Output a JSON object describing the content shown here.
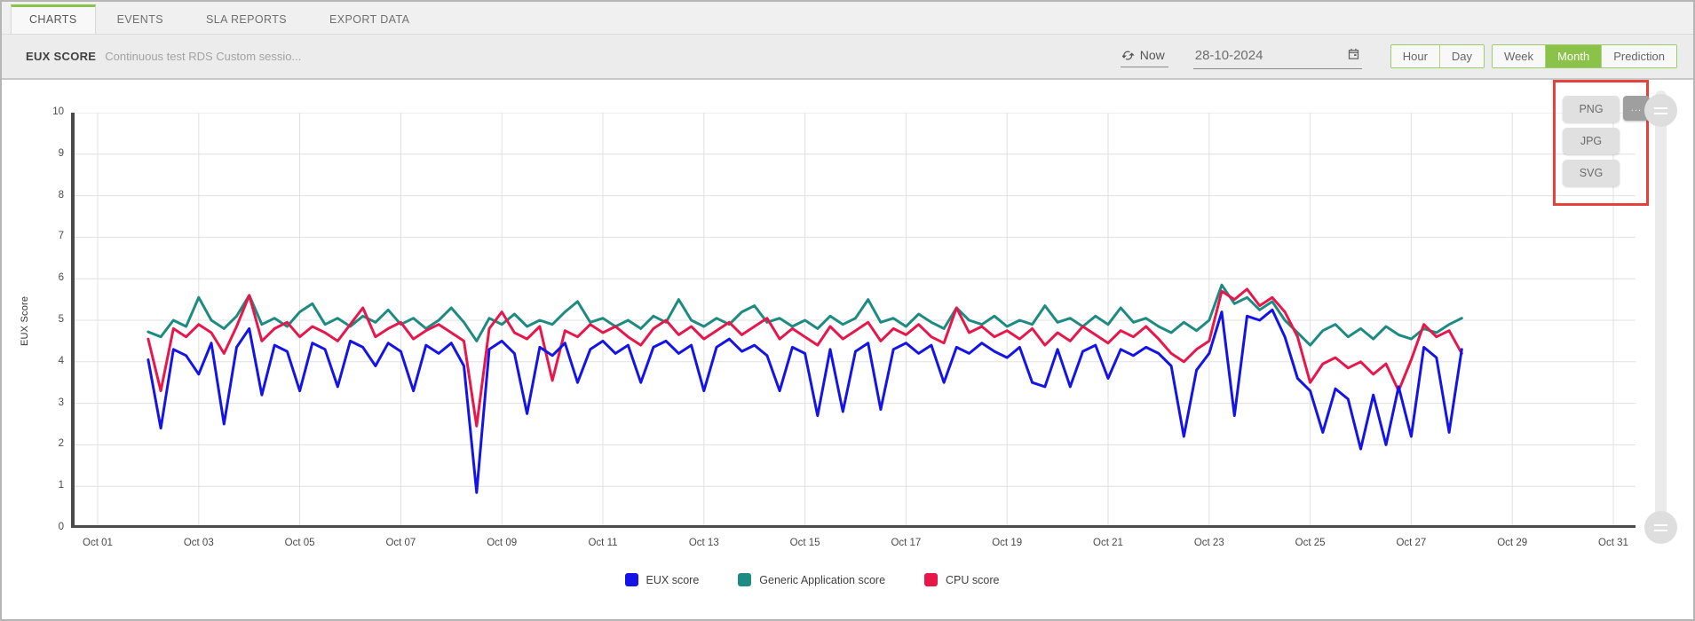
{
  "tabs": {
    "items": [
      {
        "label": "CHARTS",
        "active": true
      },
      {
        "label": "EVENTS",
        "active": false
      },
      {
        "label": "SLA REPORTS",
        "active": false
      },
      {
        "label": "EXPORT DATA",
        "active": false
      }
    ]
  },
  "toolbar": {
    "title": "EUX SCORE",
    "subtitle": "Continuous test RDS Custom sessio...",
    "now_label": "Now",
    "date_value": "28-10-2024",
    "range_groups": [
      [
        {
          "label": "Hour",
          "selected": false
        },
        {
          "label": "Day",
          "selected": false
        }
      ],
      [
        {
          "label": "Week",
          "selected": false
        },
        {
          "label": "Month",
          "selected": true
        },
        {
          "label": "Prediction",
          "selected": false
        }
      ]
    ]
  },
  "export_menu": {
    "more_label": "...",
    "options": [
      "PNG",
      "JPG",
      "SVG"
    ]
  },
  "legend": [
    {
      "label": "EUX score",
      "color": "#1414e8"
    },
    {
      "label": "Generic Application score",
      "color": "#1d8b81"
    },
    {
      "label": "CPU score",
      "color": "#e8174b"
    }
  ],
  "colors": {
    "accent_green": "#8bc34a",
    "annotation_red": "#e8403a",
    "axis": "#4a4a4a",
    "grid": "#e0e0e0"
  },
  "chart_data": {
    "type": "line",
    "title": "EUX SCORE",
    "xlabel": "",
    "ylabel": "EUX Score",
    "ylim": [
      0,
      10
    ],
    "y_ticks": [
      0,
      1,
      2,
      3,
      4,
      5,
      6,
      7,
      8,
      9,
      10
    ],
    "x_tick_labels": [
      "Oct 01",
      "Oct 03",
      "Oct 05",
      "Oct 07",
      "Oct 09",
      "Oct 11",
      "Oct 13",
      "Oct 15",
      "Oct 17",
      "Oct 19",
      "Oct 21",
      "Oct 23",
      "Oct 25",
      "Oct 27",
      "Oct 29",
      "Oct 31"
    ],
    "x_tick_days": [
      1,
      3,
      5,
      7,
      9,
      11,
      13,
      15,
      17,
      19,
      21,
      23,
      25,
      27,
      29,
      31
    ],
    "x_range_days": [
      1,
      31
    ],
    "x_start_day": 2.0,
    "x_step_days": 0.25,
    "grid": true,
    "legend_position": "bottom",
    "series": [
      {
        "name": "Generic Application score",
        "color": "#1d8b81",
        "values": [
          4.72,
          4.6,
          5.0,
          4.85,
          5.55,
          5.0,
          4.8,
          5.1,
          5.6,
          4.9,
          5.05,
          4.85,
          5.2,
          5.4,
          4.9,
          5.05,
          4.85,
          5.1,
          4.95,
          5.25,
          4.9,
          5.05,
          4.8,
          5.0,
          5.3,
          4.95,
          4.5,
          5.05,
          4.9,
          5.15,
          4.85,
          5.0,
          4.9,
          5.2,
          5.45,
          4.95,
          5.05,
          4.85,
          5.0,
          4.8,
          5.1,
          4.95,
          5.5,
          5.0,
          4.85,
          5.05,
          4.9,
          5.2,
          5.35,
          4.95,
          5.05,
          4.85,
          5.0,
          4.8,
          5.1,
          4.9,
          5.05,
          5.5,
          4.95,
          5.05,
          4.85,
          5.15,
          4.95,
          4.8,
          5.3,
          5.0,
          4.9,
          5.1,
          4.85,
          5.0,
          4.9,
          5.35,
          4.95,
          5.05,
          4.85,
          5.1,
          4.9,
          5.3,
          4.95,
          5.05,
          4.85,
          4.7,
          4.95,
          4.75,
          5.0,
          5.85,
          5.4,
          5.55,
          5.25,
          5.45,
          5.0,
          4.7,
          4.4,
          4.75,
          4.9,
          4.6,
          4.8,
          4.55,
          4.85,
          4.65,
          4.55,
          4.8,
          4.7,
          4.9,
          5.05
        ]
      },
      {
        "name": "CPU score",
        "color": "#e8174b",
        "values": [
          4.55,
          3.3,
          4.8,
          4.6,
          4.9,
          4.7,
          4.2,
          4.85,
          5.6,
          4.5,
          4.8,
          4.95,
          4.6,
          4.85,
          4.7,
          4.5,
          4.9,
          5.3,
          4.6,
          4.8,
          4.95,
          4.55,
          4.75,
          4.9,
          4.7,
          4.5,
          2.45,
          4.8,
          5.2,
          4.7,
          4.55,
          4.85,
          3.55,
          4.75,
          4.6,
          4.9,
          4.7,
          4.85,
          4.6,
          4.4,
          4.8,
          5.0,
          4.65,
          4.85,
          4.55,
          4.75,
          4.95,
          4.65,
          4.85,
          5.05,
          4.55,
          4.8,
          4.6,
          4.4,
          4.85,
          4.55,
          4.75,
          4.95,
          4.5,
          4.8,
          4.65,
          4.9,
          4.6,
          4.45,
          5.3,
          4.7,
          4.85,
          4.6,
          4.75,
          4.55,
          4.8,
          4.4,
          4.7,
          4.5,
          4.85,
          4.65,
          4.45,
          4.75,
          4.6,
          4.85,
          4.55,
          4.2,
          4.0,
          4.3,
          4.5,
          5.7,
          5.5,
          5.75,
          5.35,
          5.55,
          5.2,
          4.6,
          3.5,
          3.95,
          4.1,
          3.85,
          4.0,
          3.7,
          3.95,
          3.3,
          4.05,
          4.9,
          4.6,
          4.75,
          4.2
        ]
      },
      {
        "name": "EUX score",
        "color": "#1414e8",
        "values": [
          4.05,
          2.4,
          4.3,
          4.15,
          3.7,
          4.45,
          2.5,
          4.35,
          4.8,
          3.2,
          4.4,
          4.25,
          3.3,
          4.45,
          4.3,
          3.4,
          4.5,
          4.35,
          3.9,
          4.45,
          4.25,
          3.3,
          4.4,
          4.2,
          4.45,
          3.9,
          0.85,
          4.3,
          4.5,
          4.2,
          2.75,
          4.35,
          4.15,
          4.45,
          3.5,
          4.3,
          4.5,
          4.2,
          4.4,
          3.5,
          4.35,
          4.5,
          4.2,
          4.4,
          3.3,
          4.35,
          4.55,
          4.25,
          4.4,
          4.15,
          3.3,
          4.35,
          4.2,
          2.7,
          4.3,
          2.8,
          4.25,
          4.45,
          2.85,
          4.3,
          4.45,
          4.2,
          4.4,
          3.5,
          4.35,
          4.2,
          4.45,
          4.25,
          4.1,
          4.35,
          3.5,
          3.4,
          4.3,
          3.4,
          4.25,
          4.4,
          3.6,
          4.3,
          4.15,
          4.35,
          4.2,
          3.9,
          2.2,
          3.8,
          4.2,
          5.2,
          2.7,
          5.1,
          5.0,
          5.25,
          4.6,
          3.6,
          3.3,
          2.3,
          3.35,
          3.1,
          1.9,
          3.2,
          2.0,
          3.4,
          2.2,
          4.35,
          4.1,
          2.3,
          4.3
        ]
      }
    ]
  }
}
